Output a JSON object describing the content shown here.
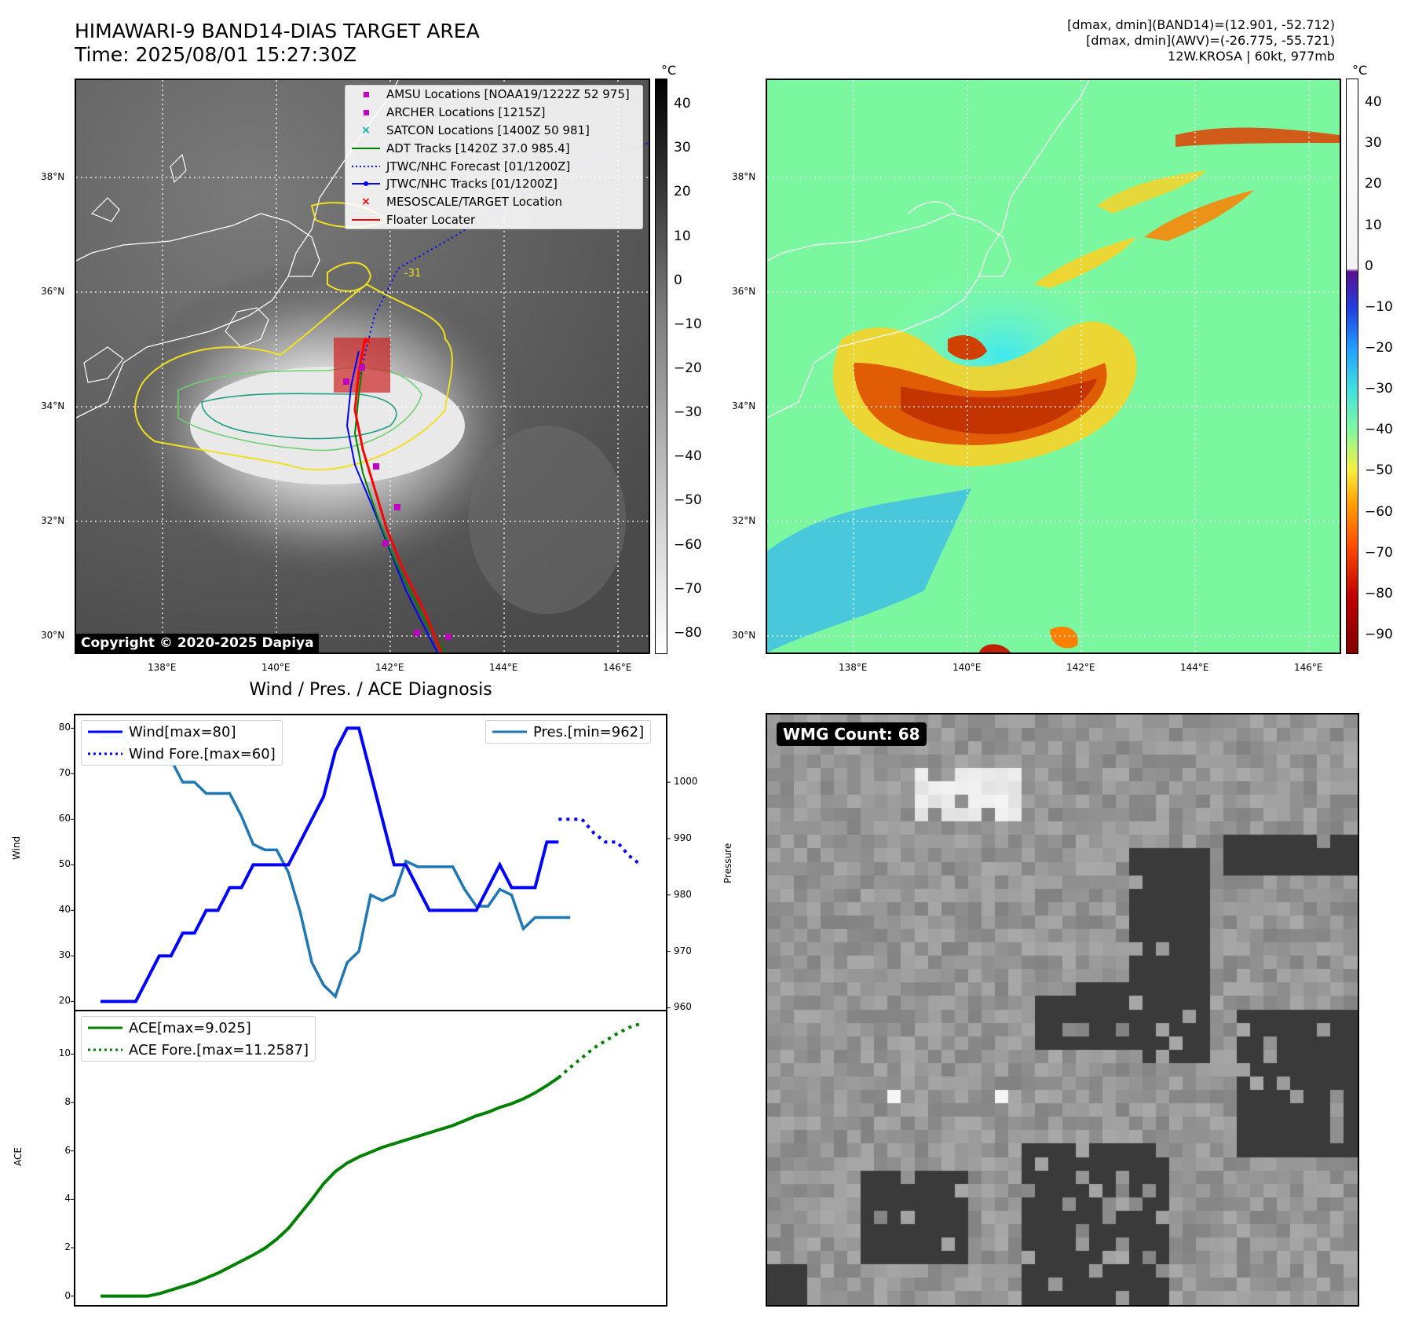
{
  "header": {
    "title_line1": "HIMAWARI-9 BAND14-DIAS TARGET AREA",
    "title_line2": "Time: 2025/08/01 15:27:30Z",
    "right_line1": "[dmax, dmin](BAND14)=(12.901, -52.712)",
    "right_line2": "[dmax, dmin](AWV)=(-26.775, -55.721)",
    "right_line3": "12W.KROSA | 60kt, 977mb"
  },
  "map": {
    "lon_ticks": [
      "138°E",
      "140°E",
      "142°E",
      "144°E",
      "146°E"
    ],
    "lat_ticks": [
      "38°N",
      "36°N",
      "34°N",
      "32°N",
      "30°N"
    ],
    "contour_label": "-31",
    "copyright": "Copyright © 2020-2025 Dapiya",
    "legend": [
      {
        "label": "AMSU Locations [NOAA19/1222Z 52 975]",
        "symbol": "square",
        "color": "#c000c0"
      },
      {
        "label": "ARCHER Locations [1215Z]",
        "symbol": "square",
        "color": "#c000c0"
      },
      {
        "label": "SATCON Locations [1400Z 50 981]",
        "symbol": "x",
        "color": "#00b0b0"
      },
      {
        "label": "ADT Tracks [1420Z 37.0 985.4]",
        "symbol": "line",
        "color": "#008000"
      },
      {
        "label": "JTWC/NHC Forecast [01/1200Z]",
        "symbol": "dotted",
        "color": "#0000ff"
      },
      {
        "label": "JTWC/NHC Tracks [01/1200Z]",
        "symbol": "line-dot",
        "color": "#0000ff"
      },
      {
        "label": "MESOSCALE/TARGET Location",
        "symbol": "x",
        "color": "#ff0000"
      },
      {
        "label": "Floater Locater",
        "symbol": "line",
        "color": "#ff0000"
      }
    ]
  },
  "colorbar_ir": {
    "unit": "°C",
    "ticks": [
      "40",
      "30",
      "20",
      "10",
      "0",
      "−10",
      "−20",
      "−30",
      "−40",
      "−50",
      "−60",
      "−70",
      "−80"
    ]
  },
  "colorbar_awv": {
    "unit": "°C",
    "ticks": [
      "40",
      "30",
      "20",
      "10",
      "0",
      "−10",
      "−20",
      "−30",
      "−40",
      "−50",
      "−60",
      "−70",
      "−80",
      "−90"
    ]
  },
  "wmg": {
    "badge": "WMG Count: 68"
  },
  "chart_data": [
    {
      "type": "line",
      "title": "Wind / Pres. / ACE Diagnosis",
      "ylabel": "Wind",
      "ylim": [
        18,
        83
      ],
      "yticks": [
        "80",
        "70",
        "60",
        "50",
        "40",
        "30",
        "20"
      ],
      "grid": false,
      "legend_placement": "top-left",
      "series": [
        {
          "name": "Wind[max=80]",
          "color": "#0000ff",
          "style": "solid",
          "x": [
            0,
            1,
            2,
            3,
            4,
            5,
            6,
            7,
            8,
            9,
            10,
            11,
            12,
            13,
            14,
            15,
            16,
            17,
            18,
            19,
            20,
            21,
            22,
            23,
            24,
            25,
            26,
            27,
            28,
            29,
            30,
            31,
            32,
            33,
            34,
            35,
            36,
            37,
            38,
            39
          ],
          "values": [
            20,
            20,
            20,
            20,
            25,
            30,
            30,
            35,
            35,
            40,
            40,
            45,
            45,
            50,
            50,
            50,
            50,
            55,
            60,
            65,
            75,
            80,
            80,
            70,
            60,
            50,
            50,
            45,
            40,
            40,
            40,
            40,
            40,
            45,
            50,
            45,
            45,
            45,
            55,
            55
          ]
        },
        {
          "name": "Wind Fore.[max=60]",
          "color": "#0000ff",
          "style": "dotted",
          "x": [
            39,
            40,
            41,
            42,
            43,
            44,
            45,
            46
          ],
          "values": [
            60,
            60,
            60,
            57,
            55,
            55,
            52,
            50
          ]
        },
        {
          "name": "Pres.[min=962]",
          "color": "#1f77b4",
          "style": "solid",
          "axis": "right",
          "x": [
            0,
            1,
            2,
            3,
            4,
            5,
            6,
            7,
            8,
            9,
            10,
            11,
            12,
            13,
            14,
            15,
            16,
            17,
            18,
            19,
            20,
            21,
            22,
            23,
            24,
            25,
            26,
            27,
            28,
            29,
            30,
            31,
            32,
            33,
            34,
            35,
            36,
            37,
            38,
            39,
            40
          ],
          "values": [
            1008,
            1008,
            1008,
            1005,
            1005,
            1004,
            1004,
            1000,
            1000,
            998,
            998,
            998,
            994,
            989,
            988,
            988,
            984,
            977,
            968,
            964,
            962,
            968,
            970,
            980,
            979,
            980,
            986,
            985,
            985,
            985,
            985,
            981,
            978,
            978,
            981,
            980,
            974,
            976,
            976,
            976,
            976
          ]
        }
      ],
      "y2label": "Pressure",
      "y2lim": [
        959.5,
        1012
      ],
      "y2ticks": [
        "1000",
        "990",
        "980",
        "970",
        "960"
      ]
    },
    {
      "type": "line",
      "ylabel": "ACE",
      "ylim": [
        -0.4,
        11.8
      ],
      "yticks": [
        "10",
        "8",
        "6",
        "4",
        "2",
        "0"
      ],
      "grid": false,
      "legend_placement": "top-left",
      "series": [
        {
          "name": "ACE[max=9.025]",
          "color": "#008000",
          "style": "solid",
          "x": [
            0,
            1,
            2,
            3,
            4,
            5,
            6,
            7,
            8,
            9,
            10,
            11,
            12,
            13,
            14,
            15,
            16,
            17,
            18,
            19,
            20,
            21,
            22,
            23,
            24,
            25,
            26,
            27,
            28,
            29,
            30,
            31,
            32,
            33,
            34,
            35,
            36,
            37,
            38,
            39
          ],
          "values": [
            0,
            0,
            0,
            0,
            0,
            0.1,
            0.25,
            0.4,
            0.55,
            0.75,
            0.95,
            1.2,
            1.45,
            1.7,
            1.98,
            2.35,
            2.8,
            3.4,
            4.0,
            4.65,
            5.15,
            5.5,
            5.75,
            5.95,
            6.15,
            6.3,
            6.45,
            6.6,
            6.75,
            6.9,
            7.05,
            7.25,
            7.45,
            7.6,
            7.8,
            7.95,
            8.15,
            8.4,
            8.7,
            9.025
          ]
        },
        {
          "name": "ACE Fore.[max=11.2587]",
          "color": "#008000",
          "style": "dotted",
          "x": [
            39,
            40,
            41,
            42,
            43,
            44,
            45,
            46
          ],
          "values": [
            9.025,
            9.45,
            9.85,
            10.25,
            10.55,
            10.85,
            11.1,
            11.2587
          ]
        }
      ]
    }
  ]
}
